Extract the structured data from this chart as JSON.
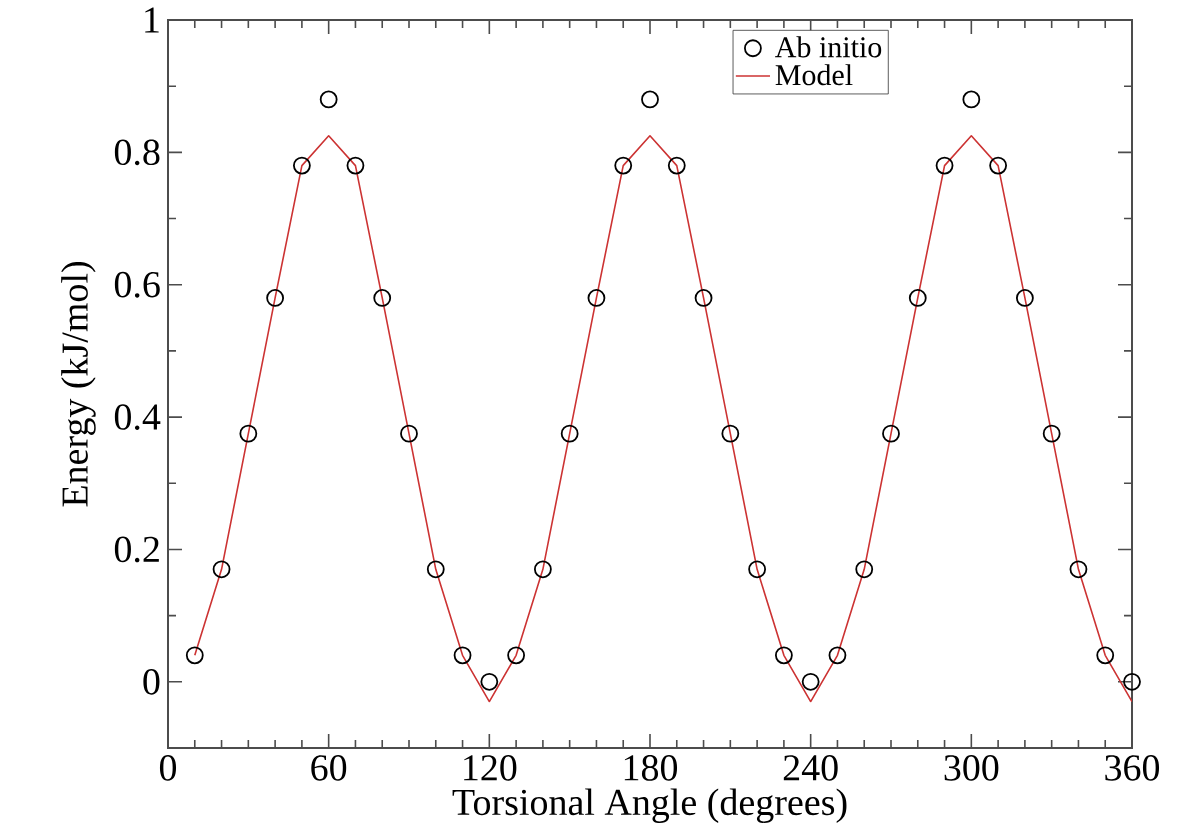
{
  "chart_data": {
    "type": "line",
    "xlabel": "Torsional Angle (degrees)",
    "ylabel": "Energy (kJ/mol)",
    "xlim": [
      0,
      360
    ],
    "ylim": [
      -0.1,
      1
    ],
    "xticks": [
      0,
      60,
      120,
      180,
      240,
      300,
      360
    ],
    "yticks": [
      0,
      0.2,
      0.4,
      0.6,
      0.8,
      1
    ],
    "legend": "top right",
    "grid": false,
    "series": [
      {
        "name": "Ab initio",
        "type": "scatter",
        "marker": "circle",
        "color": "#000000",
        "x": [
          10,
          20,
          30,
          40,
          50,
          60,
          70,
          80,
          90,
          100,
          110,
          120,
          130,
          140,
          150,
          160,
          170,
          180,
          190,
          200,
          210,
          220,
          230,
          240,
          250,
          260,
          270,
          280,
          290,
          300,
          310,
          320,
          330,
          340,
          350,
          360
        ],
        "values": [
          0.04,
          0.17,
          0.375,
          0.58,
          0.78,
          0.88,
          0.78,
          0.58,
          0.375,
          0.17,
          0.04,
          0.0,
          0.04,
          0.17,
          0.375,
          0.58,
          0.78,
          0.88,
          0.78,
          0.58,
          0.375,
          0.17,
          0.04,
          0.0,
          0.04,
          0.17,
          0.375,
          0.58,
          0.78,
          0.88,
          0.78,
          0.58,
          0.375,
          0.17,
          0.04,
          0.0
        ]
      },
      {
        "name": "Model",
        "marker": "none",
        "line_style": "solid",
        "color": "#cc3333",
        "x": [
          10,
          20,
          30,
          40,
          50,
          60,
          70,
          80,
          90,
          100,
          110,
          120,
          130,
          140,
          150,
          160,
          170,
          180,
          190,
          200,
          210,
          220,
          230,
          240,
          250,
          260,
          270,
          280,
          290,
          300,
          310,
          320,
          330,
          340,
          350,
          360
        ],
        "values": [
          0.04,
          0.17,
          0.375,
          0.58,
          0.78,
          0.825,
          0.78,
          0.58,
          0.375,
          0.17,
          0.04,
          -0.03,
          0.04,
          0.17,
          0.375,
          0.58,
          0.78,
          0.825,
          0.78,
          0.58,
          0.375,
          0.17,
          0.04,
          -0.03,
          0.04,
          0.17,
          0.375,
          0.58,
          0.78,
          0.825,
          0.78,
          0.58,
          0.375,
          0.17,
          0.04,
          -0.03
        ]
      }
    ]
  }
}
